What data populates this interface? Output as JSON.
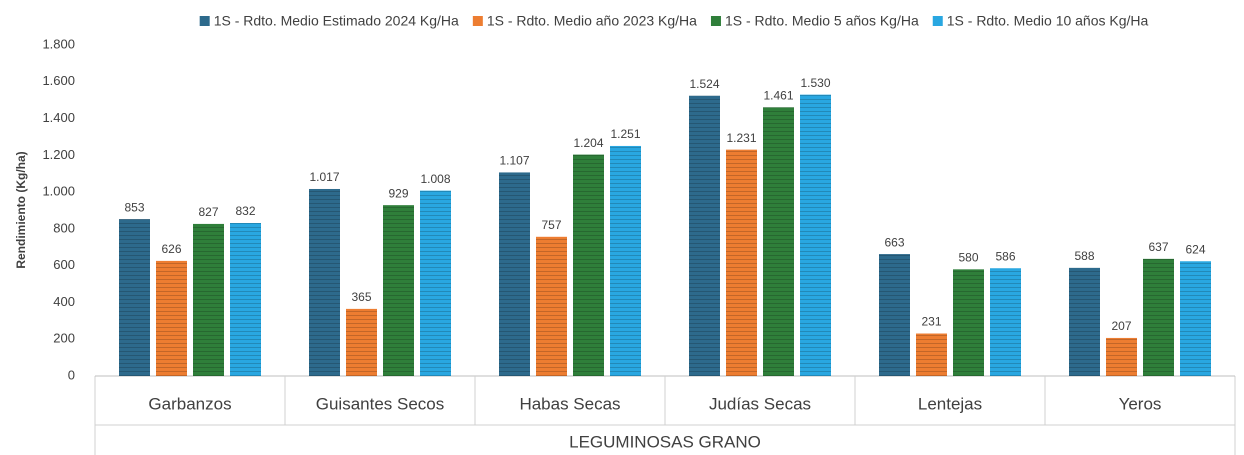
{
  "chart_data": {
    "type": "bar",
    "group_label": "LEGUMINOSAS GRANO",
    "y_axis_label": "Rendimiento (Kg/ha)",
    "categories": [
      "Garbanzos",
      "Guisantes Secos",
      "Habas Secas",
      "Judías Secas",
      "Lentejas",
      "Yeros"
    ],
    "series": [
      {
        "name": "1S - Rdto. Medio Estimado 2024 Kg/Ha",
        "color": "#2d6a8c",
        "values": [
          853,
          1017,
          1107,
          1524,
          663,
          588
        ],
        "value_labels": [
          "853",
          "1.017",
          "1.107",
          "1.524",
          "663",
          "588"
        ]
      },
      {
        "name": "1S - Rdto. Medio año 2023 Kg/Ha",
        "color": "#ed7d31",
        "values": [
          626,
          365,
          757,
          1231,
          231,
          207
        ],
        "value_labels": [
          "626",
          "365",
          "757",
          "1.231",
          "231",
          "207"
        ]
      },
      {
        "name": "1S - Rdto. Medio 5 años Kg/Ha",
        "color": "#2f7f3a",
        "values": [
          827,
          929,
          1204,
          1461,
          580,
          637
        ],
        "value_labels": [
          "827",
          "929",
          "1.204",
          "1.461",
          "580",
          "637"
        ]
      },
      {
        "name": "1S - Rdto. Medio 10 años Kg/Ha",
        "color": "#29a7e1",
        "values": [
          832,
          1008,
          1251,
          1530,
          586,
          624
        ],
        "value_labels": [
          "832",
          "1.008",
          "1.251",
          "1.530",
          "586",
          "624"
        ]
      }
    ],
    "ylim": [
      0,
      1800
    ],
    "yticks": [
      0,
      200,
      400,
      600,
      800,
      {
        "value": 1000,
        "label": "1.000"
      },
      {
        "value": 1200,
        "label": "1.200"
      },
      {
        "value": 1400,
        "label": "1.400"
      },
      {
        "value": 1600,
        "label": "1.600"
      },
      {
        "value": 1800,
        "label": "1.800"
      }
    ],
    "grid": false,
    "legend": "top"
  }
}
